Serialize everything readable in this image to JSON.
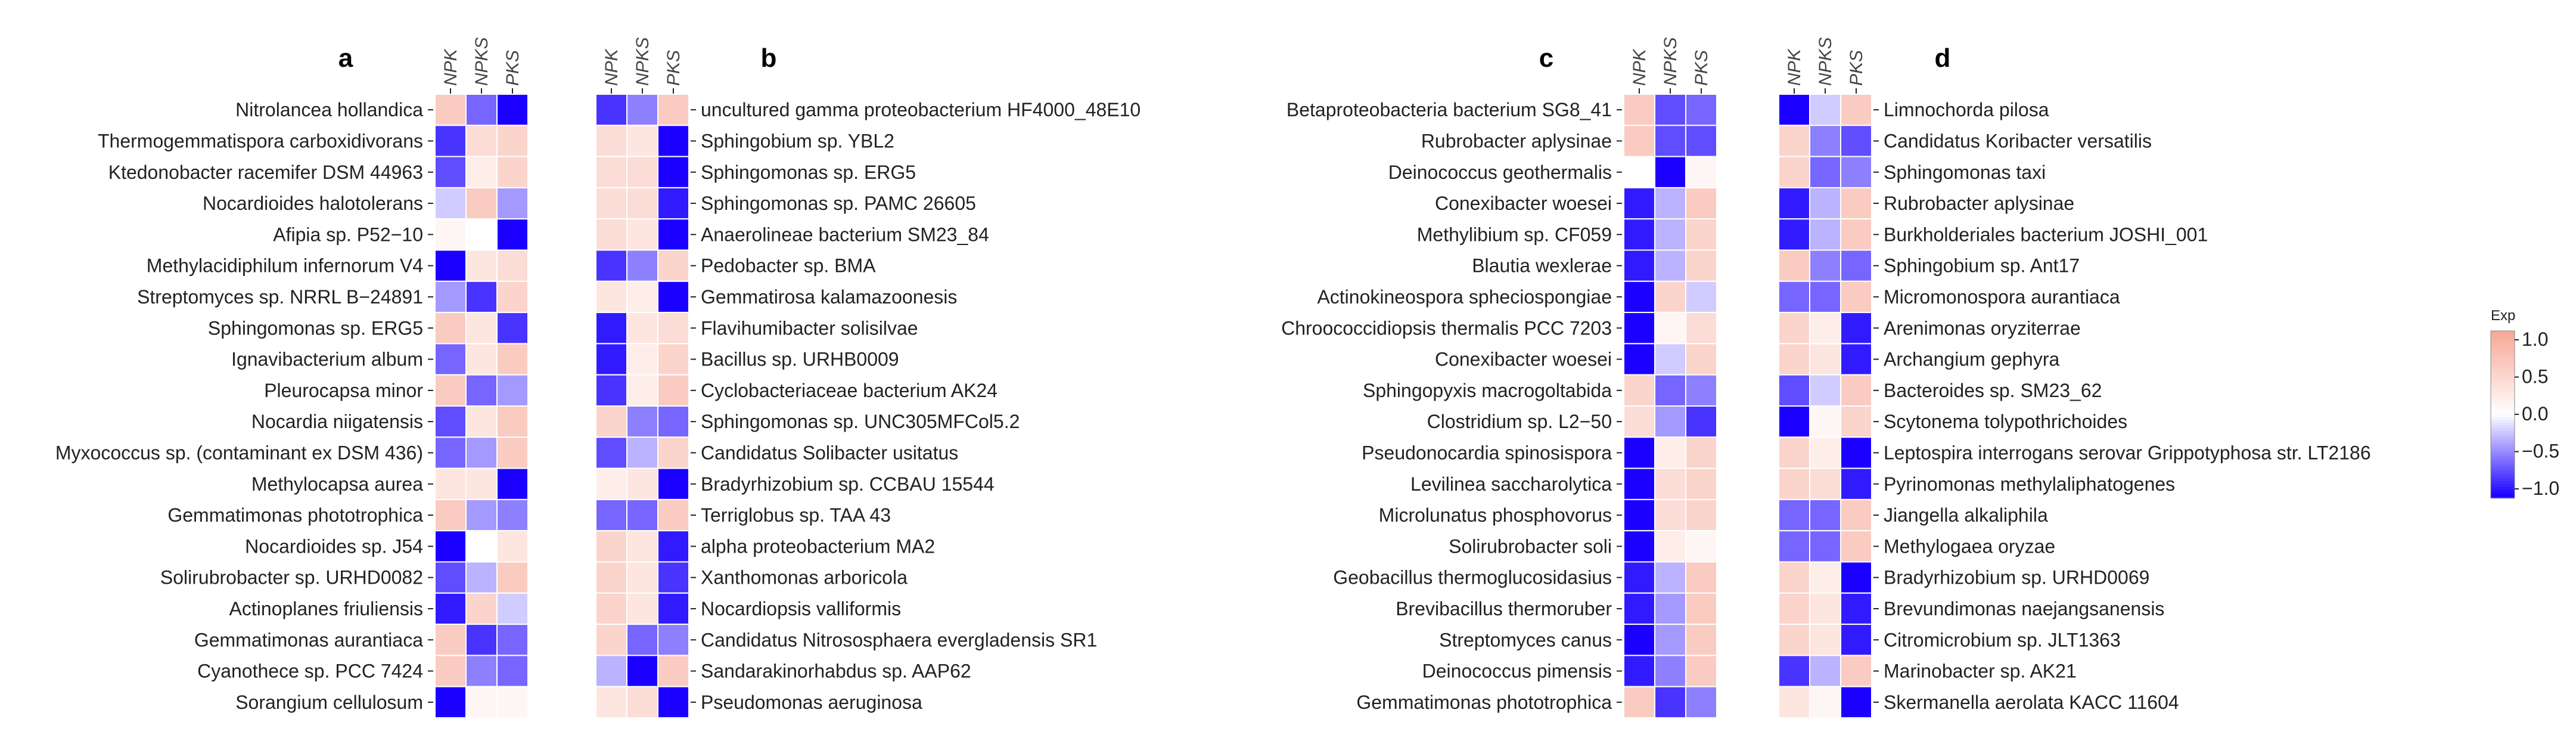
{
  "chart_data": [
    {
      "panel": "a",
      "type": "heatmap",
      "label_side": "left",
      "columns": [
        "NPK",
        "NPKS",
        "PKS"
      ],
      "rows": [
        "Nitrolancea hollandica",
        "Thermogemmatispora carboxidivorans",
        "Ktedonobacter racemifer DSM 44963",
        "Nocardioides halotolerans",
        "Afipia sp. P52−10",
        "Methylacidiphilum infernorum V4",
        "Streptomyces sp. NRRL B−24891",
        "Sphingomonas sp. ERG5",
        "Ignavibacterium album",
        "Pleurocapsa minor",
        "Nocardia niigatensis",
        "Myxococcus sp. (contaminant ex DSM 436)",
        "Methylocapsa aurea",
        "Gemmatimonas phototrophica",
        "Nocardioides sp. J54",
        "Solirubrobacter sp. URHD0082",
        "Actinoplanes friuliensis",
        "Gemmatimonas aurantiaca",
        "Cyanothece sp. PCC 7424",
        "Sorangium cellulosum"
      ],
      "values": [
        [
          0.6,
          -0.6,
          -1.0
        ],
        [
          -0.8,
          0.4,
          0.5
        ],
        [
          -0.7,
          0.2,
          0.5
        ],
        [
          -0.2,
          0.6,
          -0.4
        ],
        [
          0.1,
          0.0,
          -1.0
        ],
        [
          -1.0,
          0.3,
          0.4
        ],
        [
          -0.4,
          -0.8,
          0.5
        ],
        [
          0.6,
          0.3,
          -0.8
        ],
        [
          -0.6,
          0.3,
          0.6
        ],
        [
          0.6,
          -0.6,
          -0.4
        ],
        [
          -0.7,
          0.3,
          0.6
        ],
        [
          -0.6,
          -0.4,
          0.6
        ],
        [
          0.3,
          0.3,
          -1.0
        ],
        [
          0.6,
          -0.4,
          -0.5
        ],
        [
          -1.0,
          0.0,
          0.3
        ],
        [
          -0.7,
          -0.3,
          0.6
        ],
        [
          -0.9,
          0.5,
          -0.2
        ],
        [
          0.6,
          -0.8,
          -0.6
        ],
        [
          0.6,
          -0.5,
          -0.6
        ],
        [
          -1.0,
          0.1,
          0.1
        ]
      ]
    },
    {
      "panel": "b",
      "type": "heatmap",
      "label_side": "right",
      "columns": [
        "NPK",
        "NPKS",
        "PKS"
      ],
      "rows": [
        "uncultured gamma proteobacterium HF4000_48E10",
        "Sphingobium sp. YBL2",
        "Sphingomonas sp. ERG5",
        "Sphingomonas sp. PAMC 26605",
        "Anaerolineae bacterium SM23_84",
        "Pedobacter sp. BMA",
        "Gemmatirosa kalamazoonesis",
        "Flavihumibacter solisilvae",
        "Bacillus sp. URHB0009",
        "Cyclobacteriaceae bacterium AK24",
        "Sphingomonas sp. UNC305MFCol5.2",
        "Candidatus Solibacter usitatus",
        "Bradyrhizobium sp. CCBAU 15544",
        "Terriglobus sp. TAA 43",
        "alpha proteobacterium MA2",
        "Xanthomonas arboricola",
        "Nocardiopsis valliformis",
        "Candidatus Nitrososphaera evergladensis SR1",
        "Sandarakinorhabdus sp. AAP62",
        "Pseudomonas aeruginosa"
      ],
      "values": [
        [
          -0.8,
          -0.5,
          0.6
        ],
        [
          0.4,
          0.3,
          -1.0
        ],
        [
          0.4,
          0.4,
          -1.0
        ],
        [
          0.4,
          0.4,
          -0.9
        ],
        [
          0.4,
          0.3,
          -1.0
        ],
        [
          -0.8,
          -0.5,
          0.5
        ],
        [
          0.3,
          0.2,
          -1.0
        ],
        [
          -0.9,
          0.3,
          0.4
        ],
        [
          -0.9,
          0.2,
          0.5
        ],
        [
          -0.8,
          0.2,
          0.6
        ],
        [
          0.5,
          -0.5,
          -0.6
        ],
        [
          -0.7,
          -0.3,
          0.5
        ],
        [
          0.2,
          0.3,
          -1.0
        ],
        [
          -0.6,
          -0.6,
          0.6
        ],
        [
          0.5,
          0.3,
          -0.9
        ],
        [
          0.5,
          0.3,
          -0.8
        ],
        [
          0.5,
          0.3,
          -0.9
        ],
        [
          0.5,
          -0.6,
          -0.5
        ],
        [
          -0.3,
          -1.0,
          0.6
        ],
        [
          0.3,
          0.4,
          -1.0
        ]
      ]
    },
    {
      "panel": "c",
      "type": "heatmap",
      "label_side": "left",
      "columns": [
        "NPK",
        "NPKS",
        "PKS"
      ],
      "rows": [
        "Betaproteobacteria bacterium SG8_41",
        "Rubrobacter aplysinae",
        "Deinococcus geothermalis",
        "Conexibacter woesei",
        "Methylibium sp. CF059",
        "Blautia wexlerae",
        "Actinokineospora spheciospongiae",
        "Chroococcidiopsis thermalis PCC 7203",
        "Conexibacter woesei",
        "Sphingopyxis macrogoltabida",
        "Clostridium sp. L2−50",
        "Pseudonocardia spinosispora",
        "Levilinea saccharolytica",
        "Microlunatus phosphovorus",
        "Solirubrobacter soli",
        "Geobacillus thermoglucosidasius",
        "Brevibacillus thermoruber",
        "Streptomyces canus",
        "Deinococcus pimensis",
        "Gemmatimonas phototrophica"
      ],
      "values": [
        [
          0.6,
          -0.7,
          -0.6
        ],
        [
          0.6,
          -0.7,
          -0.7
        ],
        [
          0.0,
          -1.0,
          0.1
        ],
        [
          -0.9,
          -0.3,
          0.6
        ],
        [
          -0.9,
          -0.3,
          0.5
        ],
        [
          -0.9,
          -0.3,
          0.5
        ],
        [
          -1.0,
          0.5,
          -0.2
        ],
        [
          -1.0,
          0.1,
          0.4
        ],
        [
          -1.0,
          -0.2,
          0.5
        ],
        [
          0.5,
          -0.6,
          -0.5
        ],
        [
          0.4,
          -0.4,
          -0.8
        ],
        [
          -1.0,
          0.2,
          0.5
        ],
        [
          -1.0,
          0.4,
          0.5
        ],
        [
          -1.0,
          0.4,
          0.5
        ],
        [
          -1.0,
          0.2,
          0.1
        ],
        [
          -0.9,
          -0.3,
          0.6
        ],
        [
          -0.9,
          -0.4,
          0.6
        ],
        [
          -1.0,
          -0.4,
          0.6
        ],
        [
          -0.9,
          -0.5,
          0.6
        ],
        [
          0.6,
          -0.8,
          -0.5
        ]
      ]
    },
    {
      "panel": "d",
      "type": "heatmap",
      "label_side": "right",
      "columns": [
        "NPK",
        "NPKS",
        "PKS"
      ],
      "rows": [
        "Limnochorda pilosa",
        "Candidatus Koribacter versatilis",
        "Sphingomonas taxi",
        "Rubrobacter aplysinae",
        "Burkholderiales bacterium JOSHI_001",
        "Sphingobium sp. Ant17",
        "Micromonospora aurantiaca",
        "Arenimonas oryziterrae",
        "Archangium gephyra",
        "Bacteroides sp. SM23_62",
        "Scytonema tolypothrichoides",
        "Leptospira interrogans serovar Grippotyphosa str. LT2186",
        "Pyrinomonas methylaliphatogenes",
        "Jiangella alkaliphila",
        "Methylogaea oryzae",
        "Bradyrhizobium sp. URHD0069",
        "Brevundimonas naejangsanensis",
        "Citromicrobium sp. JLT1363",
        "Marinobacter sp. AK21",
        "Skermanella aerolata KACC 11604"
      ],
      "values": [
        [
          -1.0,
          -0.2,
          0.6
        ],
        [
          0.5,
          -0.5,
          -0.7
        ],
        [
          0.5,
          -0.6,
          -0.5
        ],
        [
          -0.9,
          -0.3,
          0.6
        ],
        [
          -0.9,
          -0.3,
          0.6
        ],
        [
          0.6,
          -0.5,
          -0.6
        ],
        [
          -0.6,
          -0.6,
          0.6
        ],
        [
          0.5,
          0.2,
          -0.9
        ],
        [
          0.5,
          0.3,
          -0.9
        ],
        [
          -0.7,
          -0.2,
          0.6
        ],
        [
          -1.0,
          0.1,
          0.5
        ],
        [
          0.5,
          0.2,
          -1.0
        ],
        [
          0.5,
          0.4,
          -0.9
        ],
        [
          -0.6,
          -0.6,
          0.6
        ],
        [
          -0.6,
          -0.6,
          0.6
        ],
        [
          0.5,
          0.2,
          -1.0
        ],
        [
          0.5,
          0.3,
          -0.9
        ],
        [
          0.5,
          0.3,
          -0.9
        ],
        [
          -0.8,
          -0.3,
          0.6
        ],
        [
          0.3,
          0.1,
          -1.0
        ]
      ]
    }
  ],
  "legend": {
    "title": "Exp",
    "ticks": [
      1.0,
      0.5,
      0.0,
      -0.5,
      -1.0
    ],
    "tick_labels": [
      "1.0",
      "0.5",
      "0.0",
      "−0.5",
      "−1.0"
    ],
    "range": [
      -1.0,
      1.0
    ]
  },
  "colors": {
    "low": "#1b00ff",
    "mid": "#ffffff",
    "high": "#f7a898"
  }
}
